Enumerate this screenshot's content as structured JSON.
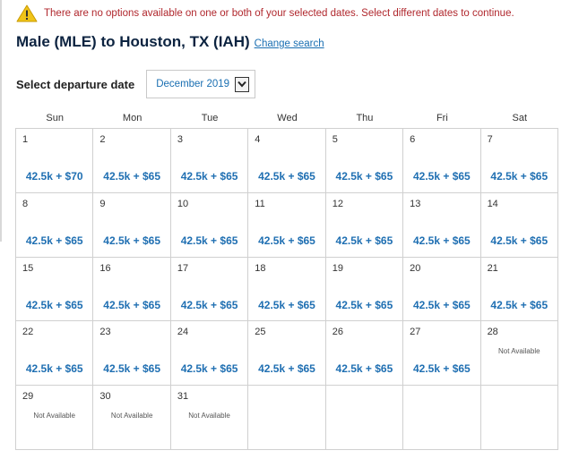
{
  "alert": {
    "icon": "warning-icon",
    "icon_color": "#f0c419",
    "text": "There are no options available on one or both of your selected dates. Select different dates to continue.",
    "text_color": "#b0272d"
  },
  "route": {
    "title": "Male (MLE) to Houston, TX (IAH)",
    "change_link": "Change search"
  },
  "departure": {
    "label": "Select departure date",
    "selected_month": "December 2019"
  },
  "calendar": {
    "weekdays": [
      "Sun",
      "Mon",
      "Tue",
      "Wed",
      "Thu",
      "Fri",
      "Sat"
    ],
    "days": [
      {
        "day": "1",
        "price": "42.5k + $70"
      },
      {
        "day": "2",
        "price": "42.5k + $65"
      },
      {
        "day": "3",
        "price": "42.5k + $65"
      },
      {
        "day": "4",
        "price": "42.5k + $65"
      },
      {
        "day": "5",
        "price": "42.5k + $65"
      },
      {
        "day": "6",
        "price": "42.5k + $65"
      },
      {
        "day": "7",
        "price": "42.5k + $65"
      },
      {
        "day": "8",
        "price": "42.5k + $65"
      },
      {
        "day": "9",
        "price": "42.5k + $65"
      },
      {
        "day": "10",
        "price": "42.5k + $65"
      },
      {
        "day": "11",
        "price": "42.5k + $65"
      },
      {
        "day": "12",
        "price": "42.5k + $65"
      },
      {
        "day": "13",
        "price": "42.5k + $65"
      },
      {
        "day": "14",
        "price": "42.5k + $65"
      },
      {
        "day": "15",
        "price": "42.5k + $65"
      },
      {
        "day": "16",
        "price": "42.5k + $65"
      },
      {
        "day": "17",
        "price": "42.5k + $65"
      },
      {
        "day": "18",
        "price": "42.5k + $65"
      },
      {
        "day": "19",
        "price": "42.5k + $65"
      },
      {
        "day": "20",
        "price": "42.5k + $65"
      },
      {
        "day": "21",
        "price": "42.5k + $65"
      },
      {
        "day": "22",
        "price": "42.5k + $65"
      },
      {
        "day": "23",
        "price": "42.5k + $65"
      },
      {
        "day": "24",
        "price": "42.5k + $65"
      },
      {
        "day": "25",
        "price": "42.5k + $65"
      },
      {
        "day": "26",
        "price": "42.5k + $65"
      },
      {
        "day": "27",
        "price": "42.5k + $65"
      },
      {
        "day": "28",
        "na": "Not Available"
      },
      {
        "day": "29",
        "na": "Not Available"
      },
      {
        "day": "30",
        "na": "Not Available"
      },
      {
        "day": "31",
        "na": "Not Available"
      },
      {},
      {},
      {},
      {}
    ]
  },
  "colors": {
    "heading": "#0c2340",
    "link": "#1a6fb2",
    "price": "#1f6fb2"
  }
}
